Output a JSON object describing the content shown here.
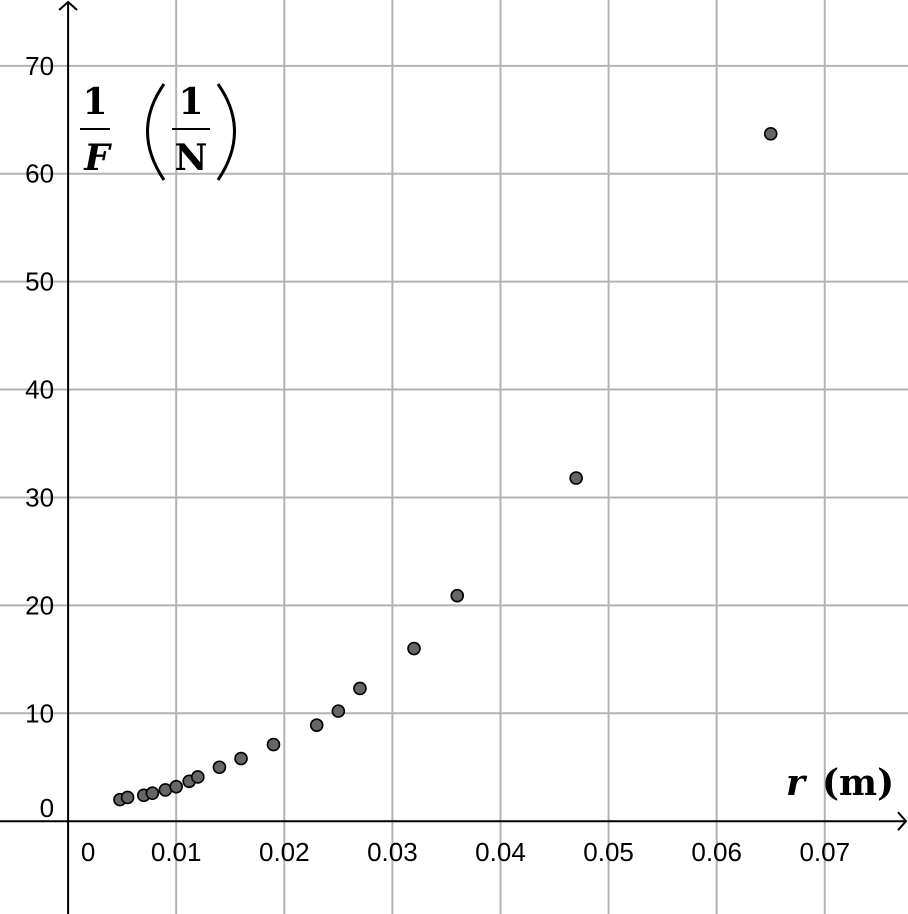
{
  "chart_data": {
    "type": "scatter",
    "x_ticks": [
      "0",
      "0.01",
      "0.02",
      "0.03",
      "0.04",
      "0.05",
      "0.06",
      "0.07"
    ],
    "y_ticks": [
      "0",
      "10",
      "20",
      "30",
      "40",
      "50",
      "60",
      "70"
    ],
    "xlim": [
      -0.0063,
      0.0777
    ],
    "ylim": [
      -8.6,
      76.1
    ],
    "grid": true,
    "xlabel": {
      "var": "r",
      "unit": "(m)"
    },
    "ylabel": {
      "num": "1",
      "den": "F",
      "unit_num": "1",
      "unit_den": "N"
    },
    "colors": {
      "point_fill": "#666666",
      "grid": "#b3b3b3"
    },
    "points": [
      {
        "x": 0.0048,
        "y": 2.0
      },
      {
        "x": 0.0055,
        "y": 2.2
      },
      {
        "x": 0.007,
        "y": 2.4
      },
      {
        "x": 0.0078,
        "y": 2.6
      },
      {
        "x": 0.009,
        "y": 2.9
      },
      {
        "x": 0.01,
        "y": 3.2
      },
      {
        "x": 0.0112,
        "y": 3.7
      },
      {
        "x": 0.012,
        "y": 4.1
      },
      {
        "x": 0.014,
        "y": 5.0
      },
      {
        "x": 0.016,
        "y": 5.8
      },
      {
        "x": 0.019,
        "y": 7.1
      },
      {
        "x": 0.023,
        "y": 8.9
      },
      {
        "x": 0.025,
        "y": 10.2
      },
      {
        "x": 0.027,
        "y": 12.3
      },
      {
        "x": 0.032,
        "y": 16.0
      },
      {
        "x": 0.036,
        "y": 20.9
      },
      {
        "x": 0.047,
        "y": 31.8
      },
      {
        "x": 0.065,
        "y": 63.7
      }
    ]
  }
}
